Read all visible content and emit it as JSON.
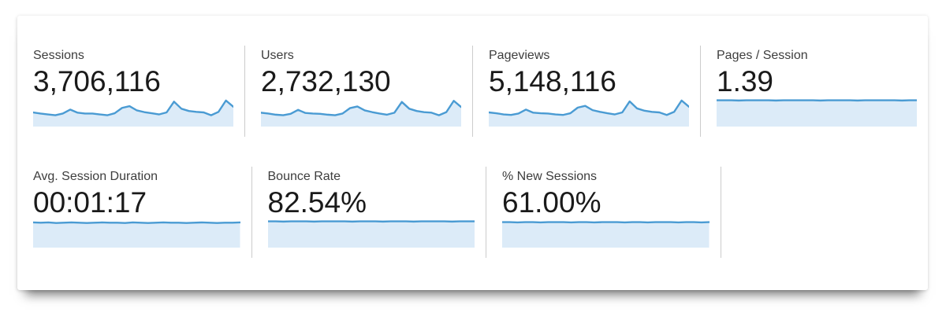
{
  "colors": {
    "spark_line": "#4a9bd3",
    "spark_fill": "#dcebf8",
    "divider": "#cccccc"
  },
  "rows": [
    {
      "metrics": [
        {
          "label": "Sessions",
          "value": "3,706,116",
          "sparkline": [
            0.5,
            0.46,
            0.43,
            0.4,
            0.46,
            0.6,
            0.49,
            0.46,
            0.46,
            0.43,
            0.4,
            0.47,
            0.66,
            0.72,
            0.57,
            0.51,
            0.47,
            0.43,
            0.5,
            0.88,
            0.63,
            0.55,
            0.52,
            0.5,
            0.4,
            0.52,
            0.92,
            0.7
          ]
        },
        {
          "label": "Users",
          "value": "2,732,130",
          "sparkline": [
            0.49,
            0.46,
            0.42,
            0.4,
            0.45,
            0.59,
            0.48,
            0.46,
            0.45,
            0.42,
            0.4,
            0.46,
            0.65,
            0.71,
            0.57,
            0.51,
            0.46,
            0.42,
            0.49,
            0.87,
            0.63,
            0.55,
            0.51,
            0.49,
            0.4,
            0.51,
            0.91,
            0.69
          ]
        },
        {
          "label": "Pageviews",
          "value": "5,148,116",
          "sparkline": [
            0.5,
            0.47,
            0.43,
            0.41,
            0.46,
            0.6,
            0.49,
            0.47,
            0.46,
            0.43,
            0.41,
            0.47,
            0.67,
            0.73,
            0.58,
            0.52,
            0.47,
            0.43,
            0.5,
            0.89,
            0.64,
            0.56,
            0.52,
            0.5,
            0.41,
            0.52,
            0.92,
            0.7
          ]
        },
        {
          "label": "Pages / Session",
          "value": "1.39",
          "sparkline": [
            0.93,
            0.93,
            0.93,
            0.92,
            0.93,
            0.93,
            0.93,
            0.93,
            0.92,
            0.93,
            0.93,
            0.93,
            0.93,
            0.93,
            0.92,
            0.93,
            0.93,
            0.93,
            0.93,
            0.92,
            0.93,
            0.93,
            0.93,
            0.93,
            0.93,
            0.92,
            0.93,
            0.93
          ]
        }
      ]
    },
    {
      "metrics": [
        {
          "label": "Avg. Session Duration",
          "value": "00:01:17",
          "sparkline": [
            0.89,
            0.88,
            0.89,
            0.87,
            0.88,
            0.89,
            0.88,
            0.87,
            0.88,
            0.89,
            0.88,
            0.88,
            0.87,
            0.89,
            0.88,
            0.87,
            0.88,
            0.89,
            0.88,
            0.88,
            0.87,
            0.88,
            0.89,
            0.88,
            0.87,
            0.88,
            0.88,
            0.89
          ]
        },
        {
          "label": "Bounce Rate",
          "value": "82.54%",
          "sparkline": [
            0.93,
            0.93,
            0.92,
            0.93,
            0.93,
            0.93,
            0.92,
            0.93,
            0.93,
            0.93,
            0.93,
            0.92,
            0.93,
            0.93,
            0.93,
            0.92,
            0.93,
            0.93,
            0.93,
            0.92,
            0.93,
            0.93,
            0.93,
            0.93,
            0.92,
            0.93,
            0.93,
            0.93
          ]
        },
        {
          "label": "% New Sessions",
          "value": "61.00%",
          "sparkline": [
            0.9,
            0.9,
            0.89,
            0.9,
            0.9,
            0.89,
            0.9,
            0.9,
            0.9,
            0.89,
            0.9,
            0.9,
            0.89,
            0.9,
            0.9,
            0.9,
            0.89,
            0.9,
            0.9,
            0.89,
            0.9,
            0.9,
            0.9,
            0.89,
            0.9,
            0.9,
            0.89,
            0.9
          ]
        }
      ]
    }
  ]
}
